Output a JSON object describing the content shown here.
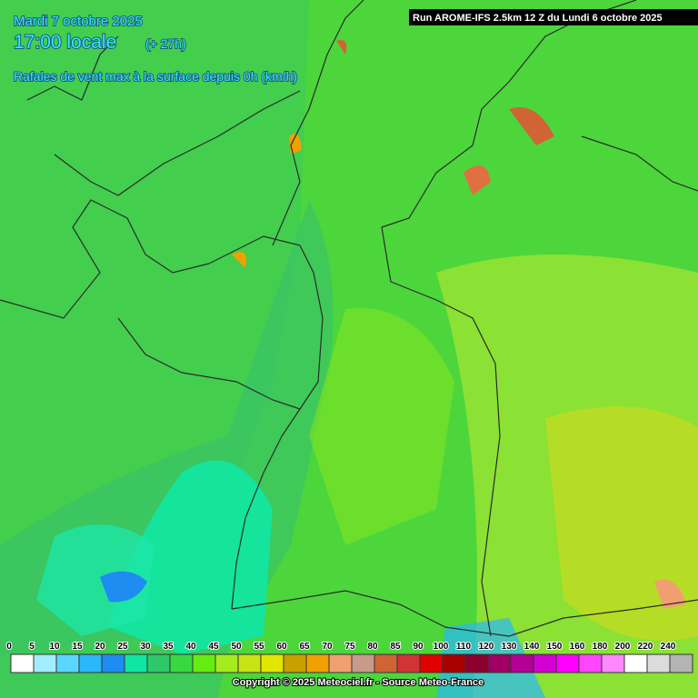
{
  "header": {
    "date": "Mardi 7 octobre 2025",
    "time": "17:00 locale",
    "lead": "(+ 27h)",
    "parameter": "Rafales de vent max à la surface depuis 0h (km/h)",
    "run": "Run AROME-IFS 2.5km 12 Z du Lundi 6 octobre 2025"
  },
  "legend": {
    "items": [
      {
        "label": "0",
        "color": "#ffffff"
      },
      {
        "label": "5",
        "color": "#a4ecff"
      },
      {
        "label": "10",
        "color": "#5ad6ff"
      },
      {
        "label": "15",
        "color": "#2ab8f8"
      },
      {
        "label": "20",
        "color": "#1e8cf0"
      },
      {
        "label": "25",
        "color": "#10e6a4"
      },
      {
        "label": "30",
        "color": "#2ec86a"
      },
      {
        "label": "35",
        "color": "#38d840"
      },
      {
        "label": "40",
        "color": "#66ec10"
      },
      {
        "label": "45",
        "color": "#a4ec20"
      },
      {
        "label": "50",
        "color": "#c8e214"
      },
      {
        "label": "55",
        "color": "#e2e600"
      },
      {
        "label": "60",
        "color": "#c8a000"
      },
      {
        "label": "65",
        "color": "#f0a000"
      },
      {
        "label": "70",
        "color": "#f0a070"
      },
      {
        "label": "75",
        "color": "#c89a8c"
      },
      {
        "label": "80",
        "color": "#d06434"
      },
      {
        "label": "85",
        "color": "#d03434"
      },
      {
        "label": "90",
        "color": "#e00000"
      },
      {
        "label": "100",
        "color": "#a80000"
      },
      {
        "label": "110",
        "color": "#8c0030"
      },
      {
        "label": "120",
        "color": "#a00064"
      },
      {
        "label": "130",
        "color": "#b40094"
      },
      {
        "label": "140",
        "color": "#d200d2"
      },
      {
        "label": "150",
        "color": "#ff00ff"
      },
      {
        "label": "160",
        "color": "#ff46ff"
      },
      {
        "label": "180",
        "color": "#ff88ff"
      },
      {
        "label": "200",
        "color": "#ffffff"
      },
      {
        "label": "220",
        "color": "#dcdcdc"
      },
      {
        "label": "240",
        "color": "#b4b4b4"
      }
    ]
  },
  "footer": {
    "copyright": "Copyright © 2025 Meteociel.fr - Source Meteo-France"
  }
}
